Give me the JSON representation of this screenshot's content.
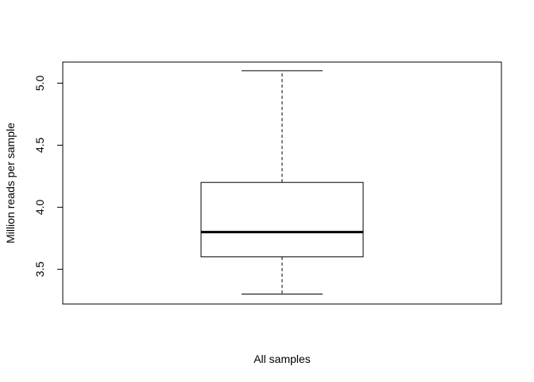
{
  "chart_data": {
    "type": "boxplot",
    "xlabel": "All samples",
    "ylabel": "Million reads per sample",
    "ylim": [
      3.22,
      5.17
    ],
    "yticks": [
      3.5,
      4.0,
      4.5,
      5.0
    ],
    "ytick_labels": [
      "3.5",
      "4.0",
      "4.5",
      "5.0"
    ],
    "grid": false,
    "legend": "none",
    "box": {
      "whisker_low": 3.3,
      "q1": 3.6,
      "median": 3.8,
      "q3": 4.2,
      "whisker_high": 5.1
    }
  }
}
